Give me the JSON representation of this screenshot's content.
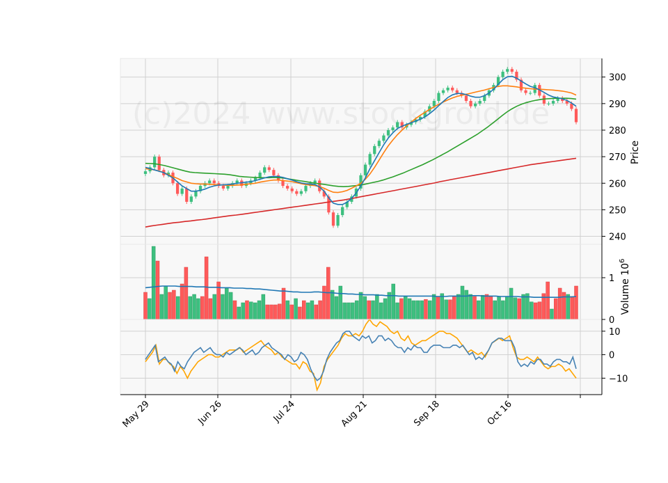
{
  "watermark": "(c)2024 www.stockgroid.de",
  "colors": {
    "up": "#3dbf7f",
    "down": "#ff5a5a",
    "ma_fast": "#1f77b4",
    "ma_mid": "#ff7f0e",
    "ma_slow": "#2ca02c",
    "ma_long": "#d62728",
    "volume_avg": "#1f77b4",
    "osc_line1": "#4682b4",
    "osc_line2": "#ffa500",
    "panel_bg": "#f8f8f8",
    "grid": "#d0d0d0"
  },
  "chart_data": [
    {
      "type": "candlestick",
      "ylabel": "Price",
      "ylim": [
        237,
        307
      ],
      "yticks": [
        240,
        250,
        260,
        270,
        280,
        290,
        300
      ],
      "x_ticks": [
        "May 29",
        "Jun 26",
        "Jul 24",
        "Aug 21",
        "Sep 18",
        "Oct 16"
      ],
      "close_prices": [
        264.5,
        266,
        270,
        265,
        263,
        264,
        260,
        256,
        258,
        253,
        255,
        257,
        259,
        260,
        261,
        260,
        259,
        258,
        259,
        260,
        261,
        259,
        260,
        261,
        262,
        264,
        266,
        265,
        263,
        261,
        259,
        258,
        257,
        256,
        257,
        259,
        260,
        261,
        257,
        255,
        249,
        244,
        248,
        251,
        253,
        255,
        258,
        263,
        267,
        271,
        274,
        276,
        278,
        280,
        281,
        283,
        281,
        282,
        283,
        284,
        285,
        287,
        289,
        291,
        294,
        295,
        296,
        295,
        294,
        293,
        291,
        289,
        290,
        291,
        293,
        295,
        297,
        300,
        302,
        303,
        302,
        299,
        295,
        294,
        294,
        297,
        293,
        290,
        290,
        291,
        292,
        291,
        290,
        288,
        283
      ],
      "ma_fast": [
        266,
        265.5,
        265,
        264.5,
        264,
        263,
        262,
        260.5,
        259,
        258,
        257,
        257,
        257.3,
        257.8,
        258.5,
        259,
        259.3,
        259.4,
        259.5,
        259.7,
        260,
        260.2,
        260.4,
        260.6,
        261,
        261.5,
        262,
        262.4,
        262.6,
        262.5,
        262.2,
        261.7,
        261.2,
        260.6,
        260.1,
        259.8,
        259.7,
        259.5,
        258.6,
        257,
        254.5,
        252.5,
        252,
        252,
        252.8,
        254.3,
        256.3,
        259,
        262,
        265.5,
        268.5,
        271.5,
        274.5,
        277,
        279,
        280.6,
        281.5,
        282.2,
        282.8,
        283.4,
        284.1,
        285,
        286.2,
        287.6,
        289.2,
        290.8,
        292.3,
        293.3,
        293.8,
        293.8,
        293.4,
        292.8,
        292.4,
        292.4,
        293,
        294,
        295.4,
        297.3,
        299,
        300.1,
        300.3,
        299.6,
        298.5,
        297.4,
        296.5,
        296,
        295.2,
        294.2,
        293.2,
        292.5,
        292.2,
        291.8,
        291.2,
        290.2,
        289
      ],
      "ma_mid": [
        265.5,
        265.3,
        265,
        264.6,
        264,
        263.3,
        262.5,
        261.8,
        261,
        260.5,
        260,
        259.8,
        259.7,
        259.7,
        259.6,
        259.5,
        259.4,
        259.3,
        259.2,
        259.2,
        259.3,
        259.4,
        259.6,
        259.8,
        260,
        260.4,
        260.7,
        261,
        261.2,
        261.2,
        261,
        260.8,
        260.6,
        260.2,
        259.8,
        259.5,
        259.3,
        259.1,
        258.7,
        258.1,
        257.3,
        256.6,
        256.5,
        256.8,
        257.3,
        258.1,
        259,
        260,
        261.5,
        263.5,
        266,
        268.7,
        271.5,
        274.1,
        276.3,
        278.3,
        280,
        281.6,
        283,
        284.4,
        285.6,
        286.7,
        287.8,
        288.8,
        289.7,
        290.6,
        291.4,
        292.1,
        292.7,
        293.1,
        293.5,
        293.9,
        294.3,
        294.7,
        295.1,
        295.6,
        296.1,
        296.5,
        296.7,
        296.7,
        296.5,
        296.3,
        296,
        295.8,
        295.6,
        295.5,
        295.4,
        295.3,
        295.2,
        295.1,
        294.9,
        294.7,
        294.4,
        294,
        293.2
      ],
      "ma_slow": [
        267.5,
        267.4,
        267.3,
        267,
        266.6,
        266.1,
        265.6,
        265.1,
        264.6,
        264.2,
        264,
        263.9,
        263.8,
        263.7,
        263.6,
        263.5,
        263.4,
        263.2,
        262.9,
        262.6,
        262.4,
        262.3,
        262.2,
        262.1,
        262.1,
        262.1,
        262.2,
        262.1,
        261.9,
        261.6,
        261.3,
        261,
        260.7,
        260.4,
        260.1,
        259.8,
        259.6,
        259.3,
        259,
        258.8,
        258.7,
        258.8,
        259,
        259.2,
        259.5,
        259.9,
        260.3,
        260.7,
        261.2,
        261.8,
        262.4,
        263.1,
        263.8,
        264.6,
        265.4,
        266.2,
        267,
        267.9,
        268.8,
        269.8,
        270.8,
        271.8,
        272.9,
        274,
        275.1,
        276.2,
        277.3,
        278.4,
        279.7,
        281,
        282.4,
        283.9,
        285.4,
        286.8,
        288,
        289,
        289.8,
        290.4,
        290.9,
        291.3,
        291.6,
        291.8,
        291.9,
        292,
        292,
        292,
        291.9,
        291.7
      ],
      "ma_long": [
        243.5,
        243.9,
        244.2,
        244.5,
        244.8,
        245.1,
        245.3,
        245.6,
        245.8,
        246.1,
        246.3,
        246.6,
        246.9,
        247.2,
        247.5,
        247.8,
        248,
        248.3,
        248.6,
        248.9,
        249.2,
        249.5,
        249.8,
        250.1,
        250.4,
        250.7,
        251,
        251.3,
        251.6,
        251.9,
        252.2,
        252.5,
        252.8,
        253.1,
        253.4,
        253.7,
        254.1,
        254.5,
        254.9,
        255.3,
        255.7,
        256.1,
        256.5,
        256.9,
        257.3,
        257.7,
        258.1,
        258.5,
        258.9,
        259.3,
        259.7,
        260.1,
        260.6,
        261,
        261.4,
        261.8,
        262.2,
        262.6,
        263,
        263.4,
        263.8,
        264.2,
        264.6,
        265,
        265.4,
        265.8,
        266.2,
        266.6,
        267,
        267.3,
        267.6,
        267.9,
        268.2,
        268.5,
        268.8,
        269.1,
        269.4
      ]
    },
    {
      "type": "bar",
      "ylabel": "Volume",
      "ylabel_exponent": "10",
      "ylabel_exponent_power": "6",
      "ylim": [
        0,
        1.8
      ],
      "yticks": [
        0,
        1
      ],
      "values": [
        0.65,
        0.5,
        1.75,
        1.4,
        0.6,
        0.8,
        0.65,
        0.7,
        0.55,
        0.85,
        1.25,
        0.55,
        0.6,
        0.5,
        0.55,
        1.5,
        0.5,
        0.6,
        0.9,
        0.6,
        0.75,
        0.65,
        0.45,
        0.3,
        0.4,
        0.45,
        0.42,
        0.4,
        0.45,
        0.6,
        0.35,
        0.35,
        0.35,
        0.37,
        0.75,
        0.45,
        0.35,
        0.5,
        0.3,
        0.45,
        0.4,
        0.45,
        0.35,
        0.45,
        0.8,
        1.25,
        0.7,
        0.55,
        0.8,
        0.4,
        0.4,
        0.4,
        0.45,
        0.65,
        0.55,
        0.45,
        0.45,
        0.6,
        0.4,
        0.5,
        0.65,
        0.85,
        0.4,
        0.5,
        0.55,
        0.5,
        0.45,
        0.45,
        0.45,
        0.48,
        0.45,
        0.6,
        0.55,
        0.62,
        0.47,
        0.47,
        0.55,
        0.6,
        0.8,
        0.7,
        0.6,
        0.55,
        0.45,
        0.58,
        0.6,
        0.55,
        0.45,
        0.55,
        0.45,
        0.55,
        0.75,
        0.52,
        0.5,
        0.6,
        0.62,
        0.42,
        0.4,
        0.42,
        0.62,
        0.9,
        0.25,
        0.5,
        0.75,
        0.65,
        0.6,
        0.55,
        0.8
      ],
      "direction": [
        0,
        1,
        1,
        0,
        1,
        1,
        0,
        0,
        1,
        0,
        0,
        1,
        1,
        1,
        0,
        0,
        0,
        1,
        0,
        1,
        1,
        1,
        0,
        1,
        1,
        0,
        1,
        1,
        1,
        1,
        0,
        0,
        0,
        0,
        0,
        1,
        0,
        1,
        0,
        0,
        1,
        1,
        0,
        0,
        0,
        0,
        1,
        1,
        1,
        1,
        1,
        1,
        1,
        1,
        1,
        0,
        1,
        1,
        1,
        1,
        1,
        1,
        1,
        0,
        1,
        1,
        1,
        1,
        1,
        0,
        1,
        1,
        0,
        1,
        1,
        0,
        0,
        1,
        1,
        1,
        1,
        0,
        1,
        1,
        0,
        0,
        1,
        1,
        1,
        1,
        1,
        1,
        0,
        1,
        1,
        1,
        0,
        0,
        0,
        0,
        1,
        0,
        0,
        0,
        1,
        0,
        0
      ],
      "avg": [
        0.76,
        0.77,
        0.78,
        0.79,
        0.8,
        0.8,
        0.8,
        0.8,
        0.79,
        0.79,
        0.79,
        0.79,
        0.78,
        0.78,
        0.78,
        0.77,
        0.77,
        0.77,
        0.76,
        0.76,
        0.76,
        0.75,
        0.75,
        0.75,
        0.74,
        0.74,
        0.73,
        0.73,
        0.72,
        0.71,
        0.7,
        0.69,
        0.68,
        0.68,
        0.67,
        0.66,
        0.66,
        0.65,
        0.65,
        0.65,
        0.66,
        0.66,
        0.65,
        0.64,
        0.64,
        0.63,
        0.62,
        0.62,
        0.61,
        0.61,
        0.6,
        0.6,
        0.59,
        0.59,
        0.59,
        0.58,
        0.58,
        0.57,
        0.57,
        0.57,
        0.56,
        0.56,
        0.56,
        0.56,
        0.56,
        0.56,
        0.56,
        0.56,
        0.56,
        0.55,
        0.55,
        0.55,
        0.56,
        0.56,
        0.56,
        0.56,
        0.56,
        0.57,
        0.57,
        0.57,
        0.56,
        0.56,
        0.56,
        0.56,
        0.55,
        0.55,
        0.55,
        0.55,
        0.55,
        0.54,
        0.54,
        0.54,
        0.53,
        0.53,
        0.53,
        0.53,
        0.53,
        0.53,
        0.53,
        0.54,
        0.54,
        0.54,
        0.55
      ]
    },
    {
      "type": "line",
      "ylim": [
        -17,
        15
      ],
      "yticks": [
        -10,
        0,
        10
      ],
      "series": [
        {
          "values": [
            -2,
            0,
            2,
            4,
            -3,
            -2,
            -1,
            -3,
            -4,
            -7,
            -3,
            -5,
            -6,
            -3,
            -1,
            1,
            2,
            3,
            1,
            2,
            3,
            1,
            0,
            0,
            -1,
            1,
            0,
            1,
            2,
            3,
            2,
            0,
            1,
            2,
            0,
            1,
            3,
            4,
            5,
            3,
            2,
            1,
            0,
            -2,
            0,
            -1,
            -3,
            -2,
            1,
            0,
            -2,
            -6,
            -9,
            -11,
            -10,
            -7,
            -2,
            1,
            3,
            5,
            6,
            9,
            10,
            10,
            8,
            7,
            6,
            8,
            7,
            8,
            5,
            6,
            8,
            8,
            6,
            7,
            6,
            4,
            3,
            3,
            1,
            3,
            2,
            4,
            3,
            3,
            1,
            1,
            3,
            4,
            4,
            4,
            3,
            3,
            3,
            4,
            4,
            3,
            4,
            2,
            0,
            1,
            -2,
            -1,
            -2,
            0,
            2,
            5,
            6,
            7,
            7,
            6,
            6,
            6,
            3,
            -3,
            -5,
            -4,
            -5,
            -3,
            -4,
            -2,
            -2,
            -4,
            -4,
            -5,
            -3,
            -2,
            -2,
            -3,
            -3,
            -4,
            -1,
            -6
          ]
        },
        {
          "values": [
            -3,
            -1,
            1,
            4,
            -4,
            -2,
            -2,
            -4,
            -5,
            -8,
            -5,
            -7,
            -10,
            -7,
            -5,
            -3,
            -2,
            -1,
            0,
            0,
            -1,
            -1,
            0,
            1,
            2,
            2,
            2,
            3,
            1,
            2,
            3,
            4,
            5,
            6,
            4,
            3,
            2,
            0,
            1,
            -1,
            -2,
            -3,
            -4,
            -4,
            -6,
            -3,
            -4,
            -7,
            -8,
            -15,
            -12,
            -5,
            -2,
            0,
            2,
            4,
            7,
            9,
            8,
            8,
            9,
            8,
            10,
            13,
            15,
            13,
            12,
            14,
            13,
            12,
            10,
            9,
            10,
            7,
            6,
            8,
            5,
            4,
            5,
            6,
            6,
            7,
            8,
            9,
            10,
            10,
            9,
            9,
            8,
            7,
            5,
            3,
            1,
            2,
            1,
            0,
            1,
            -1,
            2,
            5,
            6,
            7,
            6,
            7,
            8,
            3,
            -1,
            -2,
            -2,
            -1,
            -2,
            -3,
            -1,
            -3,
            -5,
            -6,
            -5,
            -5,
            -4,
            -5,
            -7,
            -6,
            -8,
            -10
          ]
        }
      ]
    }
  ]
}
